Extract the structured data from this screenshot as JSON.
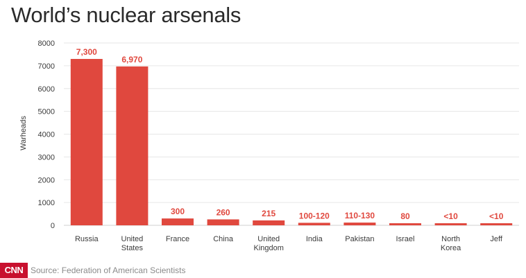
{
  "chart_data": {
    "type": "bar",
    "title": "World’s nuclear arsenals",
    "ylabel": "Warheads",
    "xlabel": "",
    "ylim": [
      0,
      8000
    ],
    "yticks": [
      0,
      1000,
      2000,
      3000,
      4000,
      5000,
      6000,
      7000,
      8000
    ],
    "grid": true,
    "bar_color": "#e0483e",
    "categories": [
      [
        "Russia"
      ],
      [
        "United",
        "States"
      ],
      [
        "France"
      ],
      [
        "China"
      ],
      [
        "United",
        "Kingdom"
      ],
      [
        "India"
      ],
      [
        "Pakistan"
      ],
      [
        "Israel"
      ],
      [
        "North",
        "Korea"
      ],
      [
        "Jeff"
      ]
    ],
    "values": [
      7300,
      6970,
      300,
      260,
      215,
      110,
      120,
      80,
      10,
      10
    ],
    "value_labels": [
      "7,300",
      "6,970",
      "300",
      "260",
      "215",
      "100-120",
      "110-130",
      "80",
      "<10",
      "<10"
    ]
  },
  "footer": {
    "logo": "CNN",
    "source": "Source: Federation of American Scientists"
  }
}
